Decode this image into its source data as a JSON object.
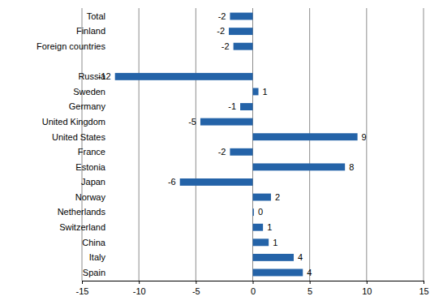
{
  "chart_data": {
    "type": "bar",
    "orientation": "horizontal",
    "categories": [
      "Total",
      "Finland",
      "Foreign countries",
      null,
      "Russia",
      "Sweden",
      "Germany",
      "United Kingdom",
      "United States",
      "France",
      "Estonia",
      "Japan",
      "Norway",
      "Netherlands",
      "Switzerland",
      "China",
      "Italy",
      "Spain"
    ],
    "values": [
      -2.0,
      -2.1,
      -1.7,
      null,
      -12.1,
      0.5,
      -1.1,
      -4.6,
      9.2,
      -2.0,
      8.1,
      -6.4,
      1.6,
      0.1,
      0.9,
      1.4,
      3.6,
      4.4
    ],
    "value_labels": [
      "-2",
      "-2",
      "-2",
      null,
      "-12",
      "1",
      "-1",
      "-5",
      "9",
      "-2",
      "8",
      "-6",
      "2",
      "0",
      "1",
      "1",
      "4",
      "4"
    ],
    "data_labels": true,
    "color": "#2463a8",
    "xlim": [
      -15,
      15
    ],
    "xticks": [
      -15,
      -10,
      -5,
      0,
      5,
      10,
      15
    ],
    "grid": true
  }
}
